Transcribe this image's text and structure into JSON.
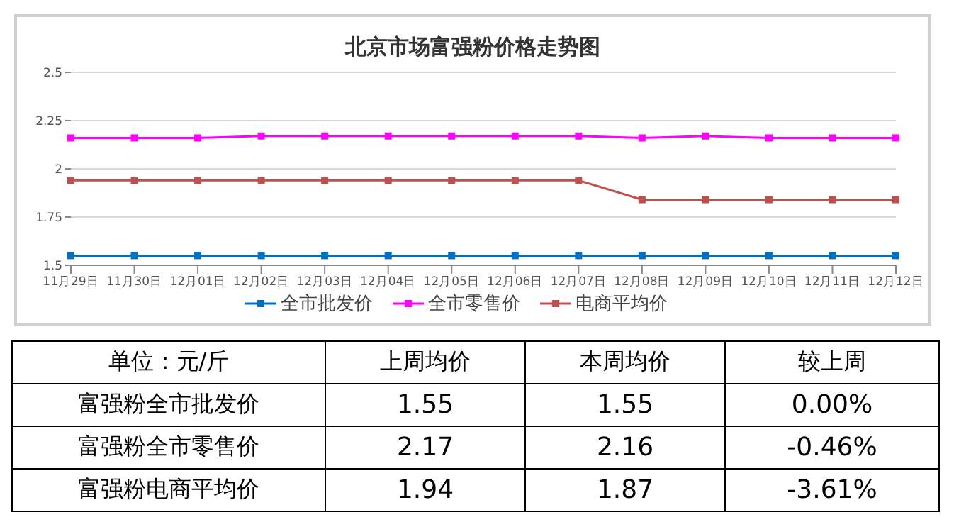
{
  "chart_data": [
    {
      "type": "line",
      "title": "北京市场富强粉价格走势图",
      "categories": [
        "11月29日",
        "11月30日",
        "12月01日",
        "12月02日",
        "12月03日",
        "12月04日",
        "12月05日",
        "12月06日",
        "12月07日",
        "12月08日",
        "12月09日",
        "12月10日",
        "12月11日",
        "12月12日"
      ],
      "series": [
        {
          "name": "全市批发价",
          "color": "#0070c0",
          "values": [
            1.55,
            1.55,
            1.55,
            1.55,
            1.55,
            1.55,
            1.55,
            1.55,
            1.55,
            1.55,
            1.55,
            1.55,
            1.55,
            1.55
          ]
        },
        {
          "name": "全市零售价",
          "color": "#ff00ff",
          "values": [
            2.16,
            2.16,
            2.16,
            2.17,
            2.17,
            2.17,
            2.17,
            2.17,
            2.17,
            2.16,
            2.17,
            2.16,
            2.16,
            2.16
          ]
        },
        {
          "name": "电商平均价",
          "color": "#c0504d",
          "values": [
            1.94,
            1.94,
            1.94,
            1.94,
            1.94,
            1.94,
            1.94,
            1.94,
            1.94,
            1.84,
            1.84,
            1.84,
            1.84,
            1.84
          ]
        }
      ],
      "ylim": [
        1.5,
        2.5
      ],
      "yticks": [
        1.5,
        1.75,
        2,
        2.25,
        2.5
      ],
      "grid": "y",
      "legend": "bottom",
      "marker": "square",
      "line_style": "solid"
    },
    {
      "type": "other",
      "annotations": [
        "单位：元/斤"
      ],
      "categories": [
        "上周均价",
        "本周均价",
        "较上周"
      ],
      "y_categories": [
        "富强粉全市批发价",
        "富强粉全市零售价",
        "富强粉电商平均价"
      ],
      "cell_labels": [
        [
          "1.55",
          "1.55",
          "0.00%"
        ],
        [
          "2.17",
          "2.16",
          "-0.46%"
        ],
        [
          "1.94",
          "1.87",
          "-3.61%"
        ]
      ]
    }
  ]
}
